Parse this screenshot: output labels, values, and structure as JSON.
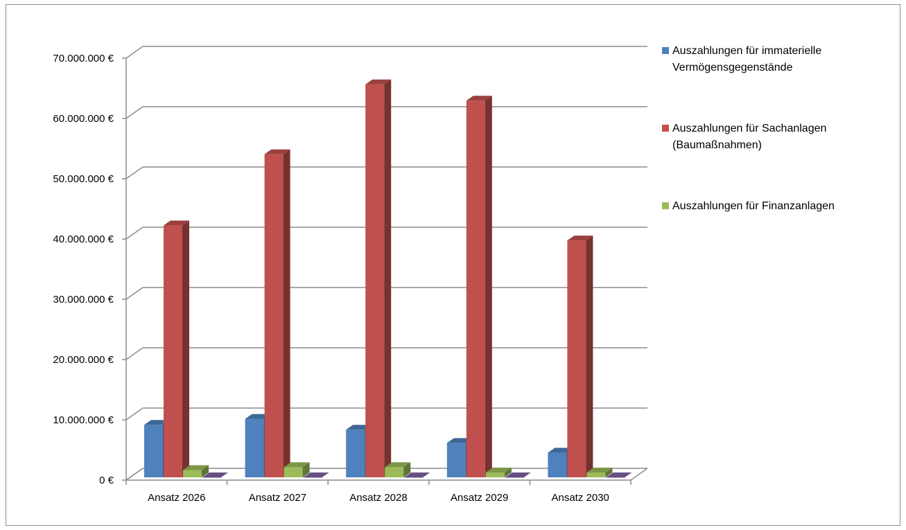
{
  "chart_data": {
    "type": "bar",
    "categories": [
      "Ansatz 2026",
      "Ansatz 2027",
      "Ansatz 2028",
      "Ansatz 2029",
      "Ansatz 2030"
    ],
    "series": [
      {
        "name": "Auszahlungen für immaterielle Vermögensgegenstände",
        "name_lines": [
          "Auszahlungen für immaterielle",
          "Vermögensgegenstände"
        ],
        "color": "#4f81bd",
        "values": [
          8700000,
          9700000,
          7900000,
          5700000,
          4100000
        ]
      },
      {
        "name": "Auszahlungen für Sachanlagen (Baumaßnahmen)",
        "name_lines": [
          "Auszahlungen für Sachanlagen",
          "(Baumaßnahmen)"
        ],
        "color": "#c0504d",
        "values": [
          41800000,
          53600000,
          65200000,
          62500000,
          39300000
        ]
      },
      {
        "name": "Auszahlungen für Finanzanlagen",
        "name_lines": [
          "Auszahlungen für Finanzanlagen"
        ],
        "color": "#9bbb59",
        "values": [
          1200000,
          1700000,
          1700000,
          800000,
          800000
        ]
      },
      {
        "name": "",
        "name_lines": [],
        "color": "#8064a2",
        "values": [
          0,
          0,
          0,
          0,
          0
        ]
      }
    ],
    "ylim": [
      0,
      70000000
    ],
    "yticks": [
      0,
      10000000,
      20000000,
      30000000,
      40000000,
      50000000,
      60000000,
      70000000
    ],
    "ytick_labels": [
      "0 €",
      "10.000.000 €",
      "20.000.000 €",
      "30.000.000 €",
      "40.000.000 €",
      "50.000.000 €",
      "60.000.000 €",
      "70.000.000 €"
    ],
    "grid": true,
    "legend": "right",
    "three_d": true
  }
}
